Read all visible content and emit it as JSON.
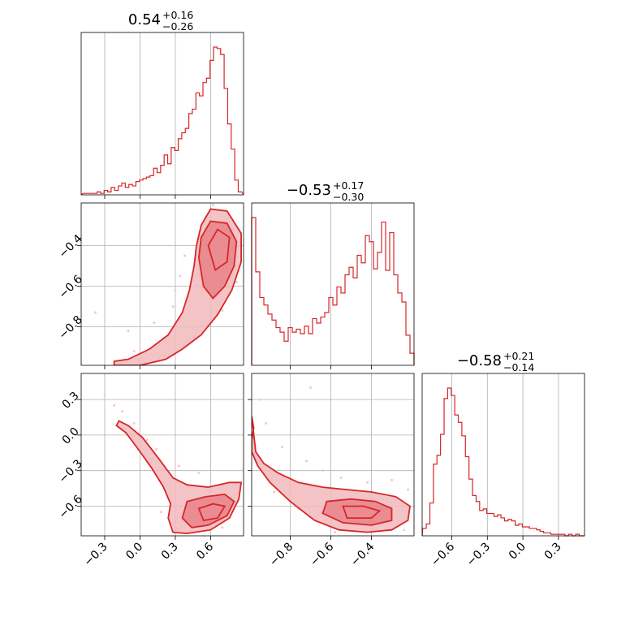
{
  "chart_data": [
    {
      "type": "histogram",
      "panel": "diag-0",
      "param_index": 0,
      "title_value": "0.54",
      "title_plus": "+0.16",
      "title_minus": "−0.26",
      "xlim": [
        -0.5,
        0.88
      ],
      "bin_centers": [
        -0.47,
        -0.44,
        -0.41,
        -0.38,
        -0.35,
        -0.32,
        -0.29,
        -0.26,
        -0.23,
        -0.2,
        -0.17,
        -0.14,
        -0.11,
        -0.08,
        -0.05,
        -0.02,
        0.01,
        0.04,
        0.07,
        0.1,
        0.13,
        0.16,
        0.19,
        0.22,
        0.25,
        0.28,
        0.31,
        0.34,
        0.37,
        0.4,
        0.43,
        0.46,
        0.49,
        0.52,
        0.55,
        0.58,
        0.61,
        0.64,
        0.67,
        0.7,
        0.73,
        0.76,
        0.79,
        0.82,
        0.85
      ],
      "counts": [
        0.01,
        0.01,
        0.01,
        0.01,
        0.02,
        0.01,
        0.03,
        0.02,
        0.05,
        0.03,
        0.06,
        0.08,
        0.05,
        0.07,
        0.06,
        0.09,
        0.1,
        0.11,
        0.12,
        0.13,
        0.18,
        0.15,
        0.2,
        0.27,
        0.21,
        0.32,
        0.3,
        0.38,
        0.42,
        0.45,
        0.55,
        0.58,
        0.69,
        0.67,
        0.76,
        0.79,
        0.91,
        1.0,
        0.99,
        0.95,
        0.72,
        0.48,
        0.31,
        0.1,
        0.02
      ]
    },
    {
      "type": "histogram",
      "panel": "diag-1",
      "param_index": 1,
      "title_value": "−0.53",
      "title_plus": "+0.17",
      "title_minus": "−0.30",
      "xlim": [
        -0.99,
        -0.19
      ],
      "bin_centers": [
        -0.98,
        -0.96,
        -0.94,
        -0.92,
        -0.9,
        -0.88,
        -0.86,
        -0.84,
        -0.82,
        -0.8,
        -0.78,
        -0.76,
        -0.74,
        -0.72,
        -0.7,
        -0.68,
        -0.66,
        -0.64,
        -0.62,
        -0.6,
        -0.58,
        -0.56,
        -0.54,
        -0.52,
        -0.5,
        -0.48,
        -0.46,
        -0.44,
        -0.42,
        -0.4,
        -0.38,
        -0.36,
        -0.34,
        -0.32,
        -0.3,
        -0.28,
        -0.26,
        -0.24,
        -0.22,
        -0.2
      ],
      "counts": [
        0.98,
        0.62,
        0.45,
        0.4,
        0.34,
        0.3,
        0.25,
        0.22,
        0.16,
        0.25,
        0.22,
        0.24,
        0.21,
        0.26,
        0.21,
        0.31,
        0.28,
        0.32,
        0.35,
        0.45,
        0.4,
        0.52,
        0.48,
        0.6,
        0.65,
        0.58,
        0.73,
        0.68,
        0.86,
        0.82,
        0.64,
        0.75,
        0.95,
        0.63,
        0.88,
        0.6,
        0.48,
        0.42,
        0.2,
        0.08
      ]
    },
    {
      "type": "histogram",
      "panel": "diag-2",
      "param_index": 2,
      "title_value": "−0.58",
      "title_plus": "+0.21",
      "title_minus": "−0.14",
      "xlim": [
        -0.85,
        0.52
      ],
      "bin_centers": [
        -0.83,
        -0.8,
        -0.77,
        -0.74,
        -0.71,
        -0.68,
        -0.65,
        -0.62,
        -0.59,
        -0.56,
        -0.53,
        -0.5,
        -0.47,
        -0.44,
        -0.41,
        -0.38,
        -0.35,
        -0.32,
        -0.29,
        -0.26,
        -0.23,
        -0.2,
        -0.17,
        -0.14,
        -0.11,
        -0.08,
        -0.05,
        -0.02,
        0.01,
        0.04,
        0.07,
        0.1,
        0.13,
        0.16,
        0.19,
        0.22,
        0.25,
        0.28,
        0.31,
        0.34,
        0.37,
        0.4,
        0.43,
        0.46,
        0.49
      ],
      "counts": [
        0.05,
        0.08,
        0.22,
        0.48,
        0.54,
        0.68,
        0.92,
        0.99,
        0.94,
        0.81,
        0.76,
        0.67,
        0.53,
        0.38,
        0.27,
        0.23,
        0.17,
        0.18,
        0.15,
        0.15,
        0.13,
        0.14,
        0.12,
        0.1,
        0.11,
        0.1,
        0.07,
        0.08,
        0.06,
        0.06,
        0.05,
        0.05,
        0.04,
        0.03,
        0.02,
        0.02,
        0.01,
        0.01,
        0.01,
        0.01,
        0.0,
        0.01,
        0.0,
        0.01,
        0.0
      ]
    },
    {
      "type": "contour",
      "panel": "pair-1-0",
      "x_param": 0,
      "y_param": 1,
      "xlim": [
        -0.5,
        0.88
      ],
      "ylim": [
        -0.99,
        -0.19
      ],
      "outer_contour": [
        [
          -0.22,
          -0.97
        ],
        [
          -0.1,
          -0.96
        ],
        [
          0.08,
          -0.91
        ],
        [
          0.24,
          -0.84
        ],
        [
          0.36,
          -0.73
        ],
        [
          0.42,
          -0.62
        ],
        [
          0.46,
          -0.5
        ],
        [
          0.48,
          -0.4
        ],
        [
          0.52,
          -0.3
        ],
        [
          0.6,
          -0.22
        ],
        [
          0.74,
          -0.23
        ],
        [
          0.86,
          -0.34
        ],
        [
          0.86,
          -0.48
        ],
        [
          0.78,
          -0.62
        ],
        [
          0.66,
          -0.74
        ],
        [
          0.52,
          -0.84
        ],
        [
          0.36,
          -0.91
        ],
        [
          0.22,
          -0.96
        ],
        [
          0.0,
          -0.99
        ],
        [
          -0.22,
          -0.99
        ]
      ],
      "inner_contour": [
        [
          0.5,
          -0.46
        ],
        [
          0.52,
          -0.36
        ],
        [
          0.6,
          -0.28
        ],
        [
          0.74,
          -0.29
        ],
        [
          0.82,
          -0.38
        ],
        [
          0.8,
          -0.5
        ],
        [
          0.72,
          -0.6
        ],
        [
          0.62,
          -0.66
        ],
        [
          0.54,
          -0.6
        ]
      ],
      "core_contour": [
        [
          0.58,
          -0.4
        ],
        [
          0.66,
          -0.32
        ],
        [
          0.76,
          -0.36
        ],
        [
          0.74,
          -0.48
        ],
        [
          0.64,
          -0.52
        ]
      ],
      "scatter": [
        [
          -0.38,
          -0.73
        ],
        [
          -0.1,
          -0.82
        ],
        [
          0.12,
          -0.78
        ],
        [
          0.3,
          -0.62
        ],
        [
          0.34,
          -0.55
        ],
        [
          0.56,
          -0.26
        ],
        [
          0.82,
          -0.58
        ],
        [
          0.7,
          -0.72
        ],
        [
          0.46,
          -0.85
        ],
        [
          0.2,
          -0.94
        ],
        [
          -0.05,
          -0.92
        ],
        [
          0.38,
          -0.45
        ],
        [
          0.28,
          -0.7
        ],
        [
          0.62,
          -0.2
        ]
      ]
    },
    {
      "type": "contour",
      "panel": "pair-2-0",
      "x_param": 0,
      "y_param": 2,
      "xlim": [
        -0.5,
        0.88
      ],
      "ylim": [
        -0.85,
        0.52
      ],
      "outer_contour": [
        [
          -0.18,
          0.12
        ],
        [
          -0.1,
          0.08
        ],
        [
          0.02,
          -0.02
        ],
        [
          0.16,
          -0.2
        ],
        [
          0.28,
          -0.36
        ],
        [
          0.4,
          -0.42
        ],
        [
          0.58,
          -0.44
        ],
        [
          0.76,
          -0.4
        ],
        [
          0.86,
          -0.4
        ],
        [
          0.84,
          -0.54
        ],
        [
          0.76,
          -0.7
        ],
        [
          0.6,
          -0.8
        ],
        [
          0.4,
          -0.83
        ],
        [
          0.28,
          -0.82
        ],
        [
          0.24,
          -0.7
        ],
        [
          0.26,
          -0.58
        ],
        [
          0.2,
          -0.44
        ],
        [
          0.1,
          -0.28
        ],
        [
          0.0,
          -0.14
        ],
        [
          -0.12,
          0.02
        ],
        [
          -0.2,
          0.08
        ]
      ],
      "inner_contour": [
        [
          0.4,
          -0.56
        ],
        [
          0.56,
          -0.52
        ],
        [
          0.72,
          -0.5
        ],
        [
          0.8,
          -0.56
        ],
        [
          0.74,
          -0.68
        ],
        [
          0.58,
          -0.76
        ],
        [
          0.44,
          -0.78
        ],
        [
          0.36,
          -0.7
        ]
      ],
      "core_contour": [
        [
          0.5,
          -0.62
        ],
        [
          0.62,
          -0.58
        ],
        [
          0.72,
          -0.6
        ],
        [
          0.66,
          -0.7
        ],
        [
          0.54,
          -0.72
        ]
      ],
      "scatter": [
        [
          -0.3,
          0.34
        ],
        [
          -0.22,
          0.25
        ],
        [
          -0.15,
          0.2
        ],
        [
          -0.05,
          0.1
        ],
        [
          0.06,
          -0.04
        ],
        [
          0.14,
          -0.12
        ],
        [
          0.2,
          -0.3
        ],
        [
          0.33,
          -0.26
        ],
        [
          0.5,
          -0.32
        ],
        [
          0.84,
          -0.42
        ],
        [
          0.18,
          -0.65
        ],
        [
          0.32,
          -0.79
        ],
        [
          0.7,
          -0.78
        ],
        [
          0.1,
          -0.2
        ]
      ]
    },
    {
      "type": "contour",
      "panel": "pair-2-1",
      "x_param": 1,
      "y_param": 2,
      "xlim": [
        -0.99,
        -0.19
      ],
      "ylim": [
        -0.85,
        0.52
      ],
      "outer_contour": [
        [
          -0.99,
          -0.04
        ],
        [
          -0.98,
          0.06
        ],
        [
          -0.99,
          0.16
        ],
        [
          -0.97,
          -0.14
        ],
        [
          -0.93,
          -0.24
        ],
        [
          -0.86,
          -0.32
        ],
        [
          -0.76,
          -0.4
        ],
        [
          -0.64,
          -0.44
        ],
        [
          -0.52,
          -0.46
        ],
        [
          -0.4,
          -0.48
        ],
        [
          -0.28,
          -0.52
        ],
        [
          -0.21,
          -0.6
        ],
        [
          -0.22,
          -0.72
        ],
        [
          -0.3,
          -0.8
        ],
        [
          -0.42,
          -0.82
        ],
        [
          -0.56,
          -0.8
        ],
        [
          -0.68,
          -0.72
        ],
        [
          -0.8,
          -0.56
        ],
        [
          -0.9,
          -0.4
        ],
        [
          -0.96,
          -0.26
        ],
        [
          -0.99,
          -0.14
        ]
      ],
      "inner_contour": [
        [
          -0.62,
          -0.56
        ],
        [
          -0.5,
          -0.54
        ],
        [
          -0.38,
          -0.56
        ],
        [
          -0.3,
          -0.62
        ],
        [
          -0.3,
          -0.72
        ],
        [
          -0.4,
          -0.76
        ],
        [
          -0.54,
          -0.74
        ],
        [
          -0.64,
          -0.66
        ]
      ],
      "core_contour": [
        [
          -0.54,
          -0.6
        ],
        [
          -0.44,
          -0.6
        ],
        [
          -0.36,
          -0.64
        ],
        [
          -0.4,
          -0.7
        ],
        [
          -0.52,
          -0.7
        ]
      ],
      "scatter": [
        [
          -0.95,
          0.3
        ],
        [
          -0.92,
          0.1
        ],
        [
          -0.84,
          -0.1
        ],
        [
          -0.72,
          -0.22
        ],
        [
          -0.64,
          -0.3
        ],
        [
          -0.7,
          0.4
        ],
        [
          -0.55,
          -0.36
        ],
        [
          -0.42,
          -0.4
        ],
        [
          -0.3,
          -0.38
        ],
        [
          -0.22,
          -0.46
        ],
        [
          -0.24,
          -0.8
        ],
        [
          -0.58,
          -0.82
        ],
        [
          -0.76,
          -0.62
        ],
        [
          -0.88,
          -0.48
        ]
      ]
    }
  ],
  "ticks": {
    "p0_values": [
      -0.3,
      0.0,
      0.3,
      0.6
    ],
    "p0_labels": [
      "−0.3",
      "0.0",
      "0.3",
      "0.6"
    ],
    "p1_values": [
      -0.8,
      -0.6,
      -0.4
    ],
    "p1_labels": [
      "−0.8",
      "−0.6",
      "−0.4"
    ],
    "p2_values": [
      -0.6,
      -0.3,
      0.0,
      0.3
    ],
    "p2_labels": [
      "−0.6",
      "−0.3",
      "0.0",
      "0.3"
    ]
  },
  "colors": {
    "series": "#d62728"
  }
}
